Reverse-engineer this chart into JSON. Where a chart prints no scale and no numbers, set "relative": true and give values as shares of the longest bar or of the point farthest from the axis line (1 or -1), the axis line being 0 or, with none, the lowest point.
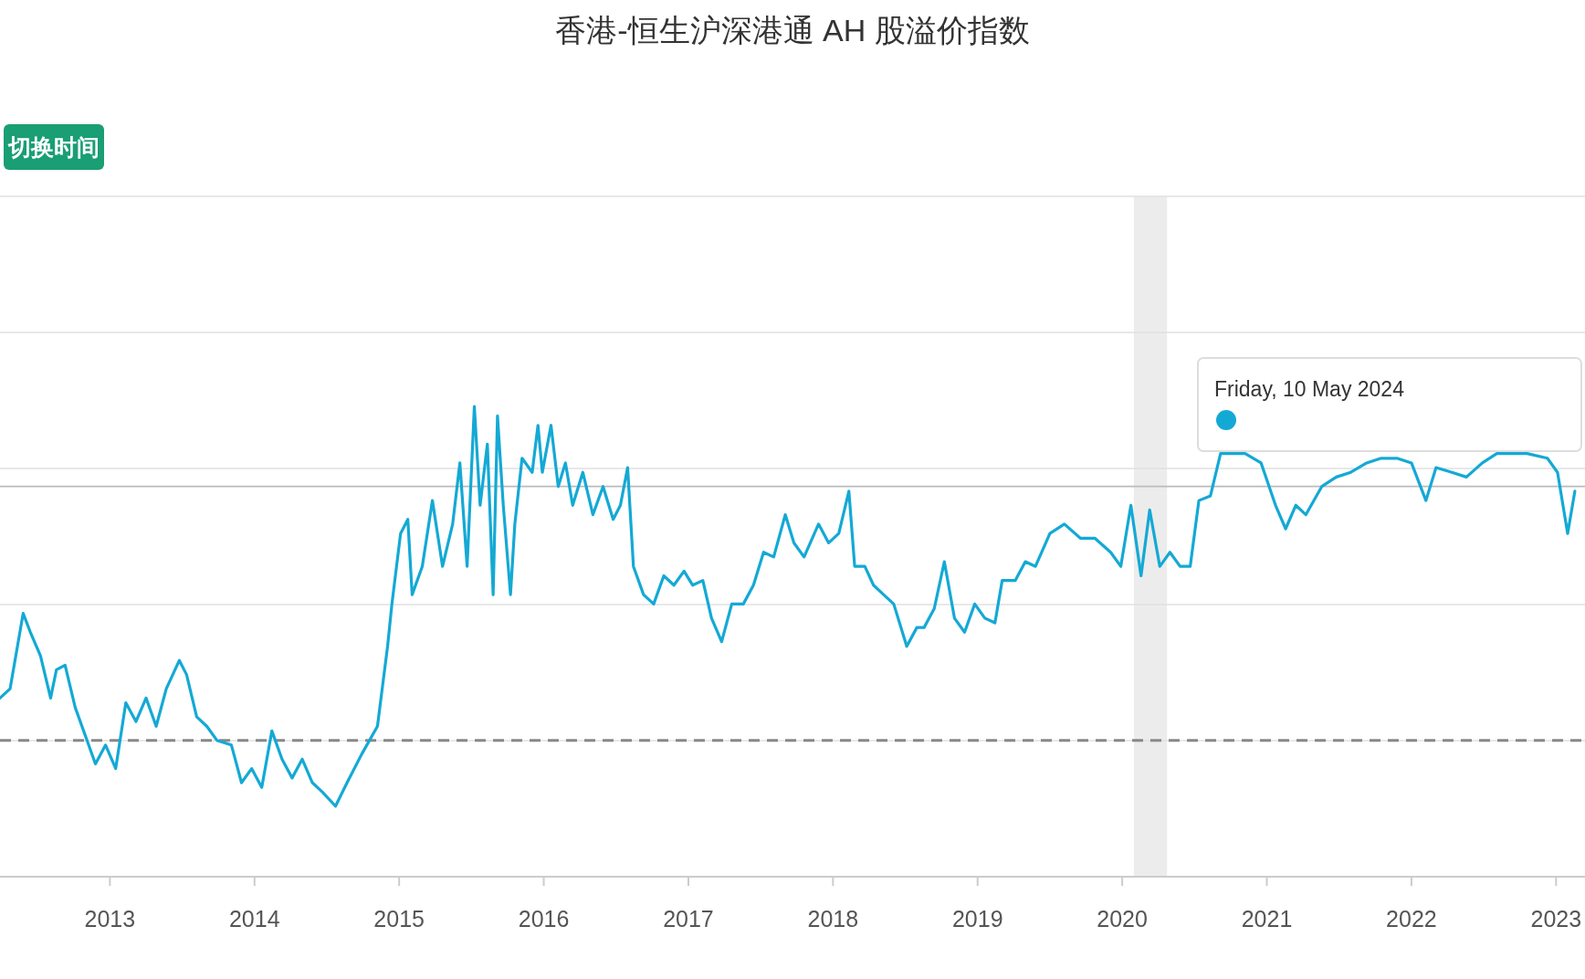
{
  "chart_data": {
    "type": "line",
    "title": "香港-恒生沪深港通 AH 股溢价指数",
    "relative": true,
    "grid": "y",
    "marker": "none",
    "line_style": "solid",
    "xlim": [
      2012.24,
      2023.2
    ],
    "xticks": [
      2013,
      2014,
      2015,
      2016,
      2017,
      2018,
      2019,
      2020,
      2021,
      2022,
      2023
    ],
    "ref_lines": [
      {
        "axis": "y",
        "value": 0.29,
        "color": "#888888",
        "line_style": "dashed"
      },
      {
        "axis": "y",
        "value": 0.83,
        "color": "#bbbbbb",
        "line_style": "solid"
      }
    ],
    "bands": [
      {
        "axis": "x",
        "from": 2020.08,
        "to": 2020.31,
        "color": "#ececec"
      }
    ],
    "annotations": [
      "切换时间",
      "Friday, 10 May 2024"
    ],
    "series": [
      {
        "color": "#14a9d5",
        "x": [
          2012.24,
          2012.31,
          2012.4,
          2012.45,
          2012.52,
          2012.59,
          2012.63,
          2012.69,
          2012.76,
          2012.83,
          2012.9,
          2012.97,
          2013.04,
          2013.11,
          2013.18,
          2013.25,
          2013.32,
          2013.39,
          2013.48,
          2013.53,
          2013.6,
          2013.67,
          2013.74,
          2013.84,
          2013.91,
          2013.98,
          2014.05,
          2014.12,
          2014.19,
          2014.26,
          2014.33,
          2014.4,
          2014.47,
          2014.56,
          2014.64,
          2014.74,
          2014.85,
          2014.92,
          2014.95,
          2015.01,
          2015.06,
          2015.09,
          2015.16,
          2015.23,
          2015.3,
          2015.37,
          2015.42,
          2015.47,
          2015.52,
          2015.56,
          2015.61,
          2015.65,
          2015.68,
          2015.72,
          2015.77,
          2015.8,
          2015.85,
          2015.92,
          2015.96,
          2015.99,
          2016.05,
          2016.1,
          2016.15,
          2016.2,
          2016.27,
          2016.34,
          2016.41,
          2016.48,
          2016.53,
          2016.58,
          2016.62,
          2016.69,
          2016.76,
          2016.83,
          2016.9,
          2016.97,
          2017.03,
          2017.1,
          2017.16,
          2017.23,
          2017.3,
          2017.38,
          2017.45,
          2017.52,
          2017.59,
          2017.67,
          2017.73,
          2017.8,
          2017.9,
          2017.97,
          2018.04,
          2018.11,
          2018.15,
          2018.22,
          2018.28,
          2018.35,
          2018.42,
          2018.51,
          2018.58,
          2018.63,
          2018.7,
          2018.77,
          2018.84,
          2018.91,
          2018.98,
          2019.05,
          2019.12,
          2019.17,
          2019.26,
          2019.33,
          2019.4,
          2019.5,
          2019.6,
          2019.71,
          2019.81,
          2019.92,
          2019.99,
          2020.06,
          2020.13,
          2020.19,
          2020.26,
          2020.33,
          2020.4,
          2020.47,
          2020.53,
          2020.61,
          2020.68,
          2020.85,
          2020.96,
          2021.06,
          2021.13,
          2021.2,
          2021.27,
          2021.38,
          2021.48,
          2021.58,
          2021.69,
          2021.79,
          2021.9,
          2022.0,
          2022.1,
          2022.17,
          2022.28,
          2022.38,
          2022.49,
          2022.59,
          2022.8,
          2022.94,
          2023.01,
          2023.08,
          2023.13
        ],
        "values": [
          0.38,
          0.4,
          0.56,
          0.52,
          0.47,
          0.38,
          0.44,
          0.45,
          0.36,
          0.3,
          0.24,
          0.28,
          0.23,
          0.37,
          0.33,
          0.38,
          0.32,
          0.4,
          0.46,
          0.43,
          0.34,
          0.32,
          0.29,
          0.28,
          0.2,
          0.23,
          0.19,
          0.31,
          0.25,
          0.21,
          0.25,
          0.2,
          0.18,
          0.15,
          0.2,
          0.26,
          0.32,
          0.49,
          0.58,
          0.73,
          0.76,
          0.6,
          0.66,
          0.8,
          0.66,
          0.75,
          0.88,
          0.66,
          1.0,
          0.79,
          0.92,
          0.6,
          0.98,
          0.79,
          0.6,
          0.75,
          0.89,
          0.86,
          0.96,
          0.86,
          0.96,
          0.83,
          0.88,
          0.79,
          0.86,
          0.77,
          0.83,
          0.76,
          0.79,
          0.87,
          0.66,
          0.6,
          0.58,
          0.64,
          0.62,
          0.65,
          0.62,
          0.63,
          0.55,
          0.5,
          0.58,
          0.58,
          0.62,
          0.69,
          0.68,
          0.77,
          0.71,
          0.68,
          0.75,
          0.71,
          0.73,
          0.82,
          0.66,
          0.66,
          0.62,
          0.6,
          0.58,
          0.49,
          0.53,
          0.53,
          0.57,
          0.67,
          0.55,
          0.52,
          0.58,
          0.55,
          0.54,
          0.63,
          0.63,
          0.67,
          0.66,
          0.73,
          0.75,
          0.72,
          0.72,
          0.69,
          0.66,
          0.79,
          0.64,
          0.78,
          0.66,
          0.69,
          0.66,
          0.66,
          0.8,
          0.81,
          0.9,
          0.9,
          0.88,
          0.79,
          0.74,
          0.79,
          0.77,
          0.83,
          0.85,
          0.86,
          0.88,
          0.89,
          0.89,
          0.88,
          0.8,
          0.87,
          0.86,
          0.85,
          0.88,
          0.9,
          0.9,
          0.89,
          0.86,
          0.73,
          0.82
        ]
      }
    ]
  }
}
